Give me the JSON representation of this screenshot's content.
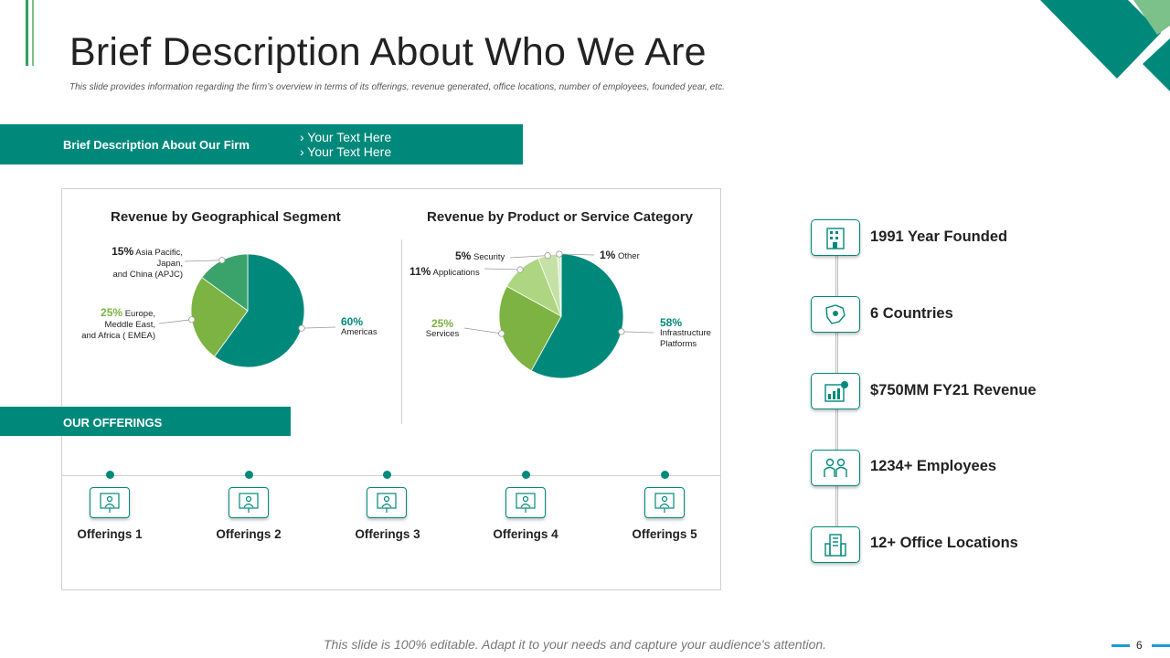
{
  "header": {
    "title": "Brief Description About Who We Are",
    "subtitle": "This slide provides information regarding the firm’s overview in terms of its offerings, revenue generated, office locations, number of employees, founded year, etc."
  },
  "brief": {
    "label": "Brief Description About Our Firm",
    "items": [
      "›  Your Text Here",
      "›  Your Text Here"
    ]
  },
  "chart_data": [
    {
      "type": "pie",
      "title": "Revenue by Geographical Segment",
      "slices": [
        {
          "pct": "60%",
          "name": "Americas",
          "value": 60,
          "color": "#00897b"
        },
        {
          "pct": "25%",
          "name": "Europe, Meddle East, and Africa ( EMEA)",
          "value": 25,
          "color": "#7cb342"
        },
        {
          "pct": "15%",
          "name": "Asia Pacific, Japan, and China (APJC)",
          "value": 15,
          "color": "#3aa36b"
        }
      ]
    },
    {
      "type": "pie",
      "title": "Revenue by Product or Service Category",
      "slices": [
        {
          "pct": "58%",
          "name": "Infrastructure Platforms",
          "value": 58,
          "color": "#00897b"
        },
        {
          "pct": "25%",
          "name": "Services",
          "value": 25,
          "color": "#7cb342"
        },
        {
          "pct": "11%",
          "name": "Applications",
          "value": 11,
          "color": "#aed581"
        },
        {
          "pct": "5%",
          "name": "Security",
          "value": 5,
          "color": "#c5e1a5"
        },
        {
          "pct": "1%",
          "name": "Other",
          "value": 1,
          "color": "#dcedc8"
        }
      ]
    }
  ],
  "geo_labels": {
    "americas": {
      "pct": "60%",
      "line1": "Americas"
    },
    "emea": {
      "pct": "25%",
      "line1": "Europe,",
      "line2": "Meddle East,",
      "line3": "and Africa ( EMEA)"
    },
    "apjc": {
      "pct": "15%",
      "line1": "Asia Pacific,",
      "line2": "Japan,",
      "line3": "and China (APJC)"
    }
  },
  "prod_labels": {
    "infra": {
      "pct": "58%",
      "line1": "Infrastructure",
      "line2": "Platforms"
    },
    "services": {
      "pct": "25%",
      "line1": "Services"
    },
    "apps": {
      "pct": "11%",
      "line1": "Applications"
    },
    "security": {
      "pct": "5%",
      "line1": "Security"
    },
    "other": {
      "pct": "1%",
      "line1": "Other"
    }
  },
  "offerings": {
    "title": "OUR OFFERINGS",
    "items": [
      "Offerings 1",
      "Offerings 2",
      "Offerings 3",
      "Offerings 4",
      "Offerings 5"
    ]
  },
  "timeline": {
    "items": [
      {
        "text": "1991 Year Founded",
        "icon": "building-icon"
      },
      {
        "text": "6 Countries",
        "icon": "map-icon"
      },
      {
        "text": "$750MM FY21 Revenue",
        "icon": "revenue-chart-icon"
      },
      {
        "text": "1234+ Employees",
        "icon": "employees-icon"
      },
      {
        "text": "12+ Office Locations",
        "icon": "office-building-icon"
      }
    ]
  },
  "footer": {
    "text": "This slide is 100% editable. Adapt it to your needs and capture your audience's attention.",
    "page": "6"
  },
  "colors": {
    "teal": "#00897b",
    "green": "#7cb342",
    "accent_blue": "#1a9bd7"
  }
}
